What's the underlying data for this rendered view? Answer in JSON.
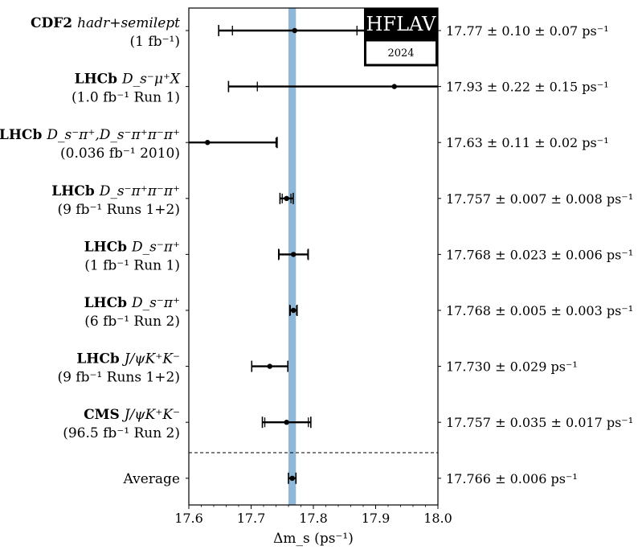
{
  "chart_data": {
    "type": "forest",
    "xlabel": "Δm_s (ps⁻¹)",
    "xlim": [
      17.6,
      18.0
    ],
    "xticks": [
      "17.6",
      "17.7",
      "17.8",
      "17.9",
      "18.0"
    ],
    "logo": {
      "name": "HFLAV",
      "year": "2024"
    },
    "average_band": {
      "value": 17.766,
      "err": 0.006,
      "color": "#8fb8d8"
    },
    "measurements": [
      {
        "experiment": "CDF2",
        "channel": "hadr+semilept",
        "dataset": "(1 fb⁻¹)",
        "value": 17.77,
        "stat": 0.1,
        "syst": 0.07,
        "result": "17.77 ± 0.10 ± 0.07 ps⁻¹"
      },
      {
        "experiment": "LHCb",
        "channel": "D_s⁻μ⁺X",
        "dataset": "(1.0 fb⁻¹ Run 1)",
        "value": 17.93,
        "stat": 0.22,
        "syst": 0.15,
        "result": "17.93 ± 0.22 ± 0.15 ps⁻¹"
      },
      {
        "experiment": "LHCb",
        "channel": "D_s⁻π⁺,D_s⁻π⁺π⁻π⁺",
        "dataset": "(0.036 fb⁻¹ 2010)",
        "value": 17.63,
        "stat": 0.11,
        "syst": 0.02,
        "result": "17.63 ± 0.11 ± 0.02 ps⁻¹"
      },
      {
        "experiment": "LHCb",
        "channel": "D_s⁻π⁺π⁻π⁺",
        "dataset": "(9 fb⁻¹ Runs 1+2)",
        "value": 17.757,
        "stat": 0.007,
        "syst": 0.008,
        "result": "17.757 ± 0.007 ± 0.008 ps⁻¹"
      },
      {
        "experiment": "LHCb",
        "channel": "D_s⁻π⁺",
        "dataset": "(1 fb⁻¹ Run 1)",
        "value": 17.768,
        "stat": 0.023,
        "syst": 0.006,
        "result": "17.768 ± 0.023 ± 0.006 ps⁻¹"
      },
      {
        "experiment": "LHCb",
        "channel": "D_s⁻π⁺",
        "dataset": "(6 fb⁻¹ Run 2)",
        "value": 17.768,
        "stat": 0.005,
        "syst": 0.003,
        "result": "17.768 ± 0.005 ± 0.003 ps⁻¹"
      },
      {
        "experiment": "LHCb",
        "channel": "J/ψK⁺K⁻",
        "dataset": "(9 fb⁻¹ Runs 1+2)",
        "value": 17.73,
        "stat": 0.029,
        "syst": null,
        "result": "17.730 ± 0.029 ps⁻¹"
      },
      {
        "experiment": "CMS",
        "channel": "J/ψK⁺K⁻",
        "dataset": "(96.5 fb⁻¹ Run 2)",
        "value": 17.757,
        "stat": 0.035,
        "syst": 0.017,
        "result": "17.757 ± 0.035 ± 0.017 ps⁻¹"
      }
    ],
    "average": {
      "label": "Average",
      "value": 17.766,
      "stat": 0.006,
      "syst": null,
      "result": "17.766 ± 0.006 ps⁻¹"
    }
  }
}
